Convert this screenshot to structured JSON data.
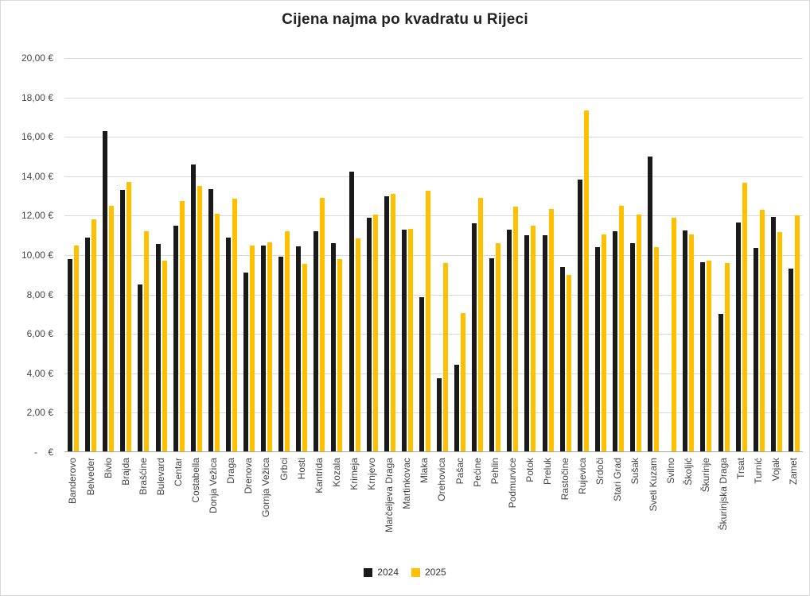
{
  "chart_data": {
    "type": "bar",
    "title": "Cijena najma po kvadratu u Rijeci",
    "categories": [
      "Banderovo",
      "Belveder",
      "Bivio",
      "Brajda",
      "Brašćine",
      "Bulevard",
      "Centar",
      "Costabella",
      "Donja Vežica",
      "Draga",
      "Drenova",
      "Gornja Vežica",
      "Grbci",
      "Hosti",
      "Kantrida",
      "Kozala",
      "Krimeja",
      "Krnjevo",
      "Marčeljeva Draga",
      "Martinkovac",
      "Mlaka",
      "Orehovica",
      "Pašac",
      "Pećine",
      "Pehlin",
      "Podmurvice",
      "Potok",
      "Preluk",
      "Rastočine",
      "Rujevica",
      "Srdoči",
      "Stari Grad",
      "Sušak",
      "Sveti Kuzam",
      "Svilno",
      "Školjić",
      "Škurinje",
      "Škurinjska Draga",
      "Trsat",
      "Turnić",
      "Vojak",
      "Zamet"
    ],
    "series": [
      {
        "name": "2024",
        "color": "#1a1a1a",
        "values": [
          9.8,
          10.9,
          16.3,
          13.3,
          8.5,
          10.55,
          11.5,
          14.6,
          13.35,
          10.9,
          9.1,
          10.5,
          9.9,
          10.45,
          11.2,
          10.6,
          14.25,
          11.9,
          13.0,
          11.3,
          7.85,
          3.75,
          4.45,
          11.6,
          9.85,
          11.3,
          11.0,
          11.0,
          9.4,
          13.85,
          10.4,
          11.2,
          10.6,
          15.0,
          null,
          11.25,
          9.65,
          7.0,
          11.65,
          10.35,
          11.95,
          9.3
        ]
      },
      {
        "name": "2025",
        "color": "#ffc000",
        "values": [
          10.5,
          11.8,
          12.5,
          13.7,
          11.2,
          9.7,
          12.75,
          13.5,
          12.1,
          12.85,
          10.5,
          10.65,
          11.2,
          9.55,
          12.9,
          9.8,
          10.85,
          12.05,
          13.1,
          11.35,
          13.25,
          9.6,
          7.05,
          12.9,
          10.6,
          12.45,
          11.5,
          12.35,
          9.0,
          17.35,
          11.05,
          12.5,
          12.05,
          10.4,
          11.9,
          11.05,
          9.7,
          9.6,
          13.65,
          12.3,
          11.15,
          12.0
        ]
      }
    ],
    "ylim": [
      0,
      20
    ],
    "y_tick_step": 2,
    "y_tick_labels": [
      "-    €",
      "2,00 €",
      "4,00 €",
      "6,00 €",
      "8,00 €",
      "10,00 €",
      "12,00 €",
      "14,00 €",
      "16,00 €",
      "18,00 €",
      "20,00 €"
    ],
    "grid": true,
    "legend_position": "bottom"
  }
}
